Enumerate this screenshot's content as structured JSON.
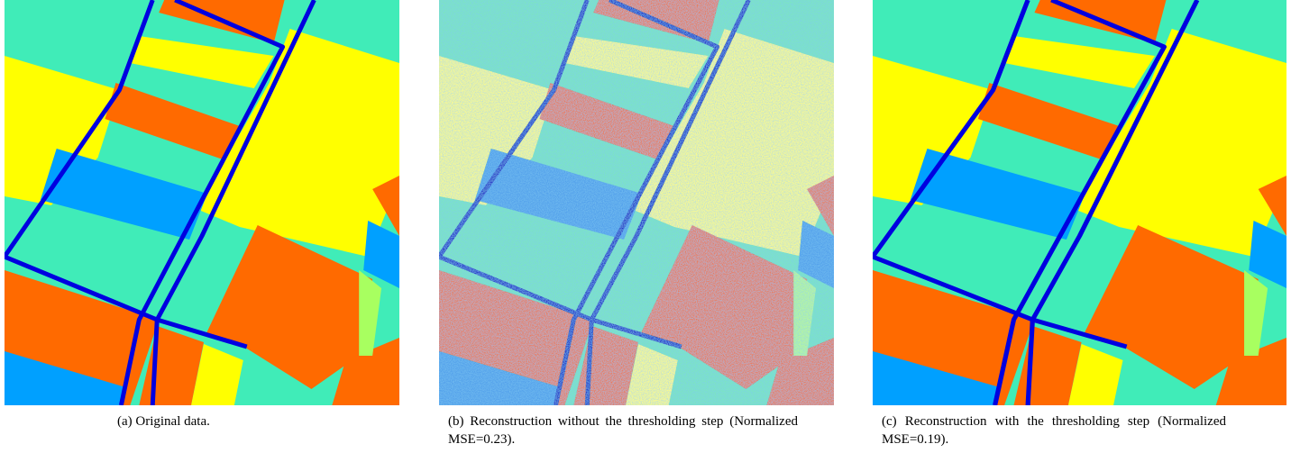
{
  "figure": {
    "panels": [
      {
        "caption": "(a) Original data."
      },
      {
        "caption": "(b) Reconstruction without the thresholding step (Normalized MSE=0.23)."
      },
      {
        "caption": "(c) Reconstruction with the thresholding step (Normalized MSE=0.19)."
      }
    ]
  }
}
